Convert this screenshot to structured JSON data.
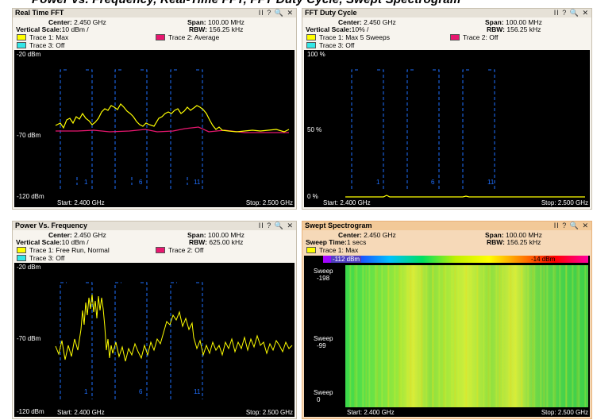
{
  "banner": "Power vs. Frequency, Real-Time FFT, FFT Duty Cycle, Swept Spectrogram",
  "controls": "II ? 🔍 ✕",
  "panels": {
    "fft": {
      "title": "Real Time FFT",
      "center": "2.450 GHz",
      "span": "100.00 MHz",
      "vscale_label": "Vertical Scale:",
      "vscale": "10 dBm /",
      "rbw": "156.25 kHz",
      "trace1": "Trace 1: Max",
      "trace2": "Trace 2: Average",
      "trace3": "Trace 3: Off",
      "y_top": "-20 dBm",
      "y_mid": "-70 dBm",
      "y_bot": "-120 dBm",
      "start": "Start: 2.400 GHz",
      "stop": "Stop: 2.500 GHz",
      "ch1": "1",
      "ch6": "6",
      "ch11": "11"
    },
    "duty": {
      "title": "FFT Duty Cycle",
      "center": "2.450 GHz",
      "span": "100.00 MHz",
      "vscale_label": "Vertical Scale:",
      "vscale": "10% /",
      "rbw": "156.25 kHz",
      "trace1": "Trace 1: Max 5 Sweeps",
      "trace2": "Trace 2: Off",
      "trace3": "Trace 3: Off",
      "y_top": "100 %",
      "y_mid": "50 %",
      "y_bot": "0 %",
      "start": "Start: 2.400 GHz",
      "stop": "Stop: 2.500 GHz",
      "ch1": "1",
      "ch6": "6",
      "ch11": "11"
    },
    "pvf": {
      "title": "Power Vs. Frequency",
      "center": "2.450 GHz",
      "span": "100.00 MHz",
      "vscale_label": "Vertical Scale:",
      "vscale": "10 dBm /",
      "rbw": "625.00 kHz",
      "trace1": "Trace 1: Free Run, Normal",
      "trace2": "Trace 2: Off",
      "trace3": "Trace 3: Off",
      "y_top": "-20 dBm",
      "y_mid": "-70 dBm",
      "y_bot": "-120 dBm",
      "start": "Start: 2.400 GHz",
      "stop": "Stop: 2.500 GHz",
      "ch1": "1",
      "ch6": "6",
      "ch11": "11"
    },
    "spectro": {
      "title": "Swept Spectrogram",
      "center": "2.450 GHz",
      "span": "100.00 MHz",
      "sweep_label": "Sweep Time:",
      "sweep": "1 secs",
      "rbw": "156.25 kHz",
      "trace1": "Trace 1: Max",
      "scale_min": "-112 dBm",
      "scale_max": "-14 dBm",
      "y_top": "Sweep",
      "y_top2": "-198",
      "y_mid": "Sweep",
      "y_mid2": "-99",
      "y_bot": "Sweep",
      "y_bot2": "0",
      "start": "Start: 2.400 GHz",
      "stop": "Stop: 2.500 GHz"
    }
  },
  "labels": {
    "center": "Center:",
    "span": "Span:",
    "rbw": "RBW:"
  },
  "colors": {
    "trace_yellow": "#ffff00",
    "trace_magenta": "#e8176f",
    "trace_cyan": "#33e6e6",
    "channel_blue": "#1e6fff"
  }
}
